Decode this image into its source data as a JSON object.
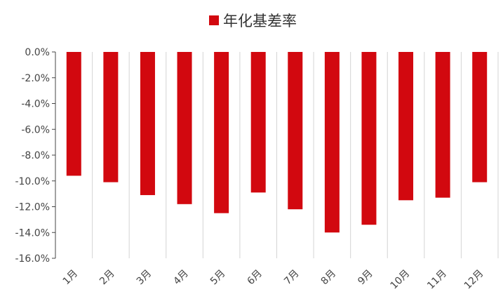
{
  "chart_data": {
    "type": "bar",
    "title": "",
    "xlabel": "",
    "ylabel": "",
    "categories": [
      "1月",
      "2月",
      "3月",
      "4月",
      "5月",
      "6月",
      "7月",
      "8月",
      "9月",
      "10月",
      "11月",
      "12月"
    ],
    "series": [
      {
        "name": "年化基差率",
        "color": "#d2080f",
        "values": [
          -9.6,
          -10.1,
          -11.1,
          -11.8,
          -12.5,
          -10.9,
          -12.2,
          -14.0,
          -13.4,
          -11.5,
          -11.3,
          -10.1
        ]
      }
    ],
    "ylim": [
      -16,
      0
    ],
    "yticks": [
      0,
      -2,
      -4,
      -6,
      -8,
      -10,
      -12,
      -14,
      -16
    ],
    "ytick_labels": [
      "0.0%",
      "-2.0%",
      "-4.0%",
      "-6.0%",
      "-8.0%",
      "-10.0%",
      "-12.0%",
      "-14.0%",
      "-16.0%"
    ],
    "grid": false,
    "category_separators": true,
    "legend_position": "top-center",
    "x_label_rotation": -45
  }
}
